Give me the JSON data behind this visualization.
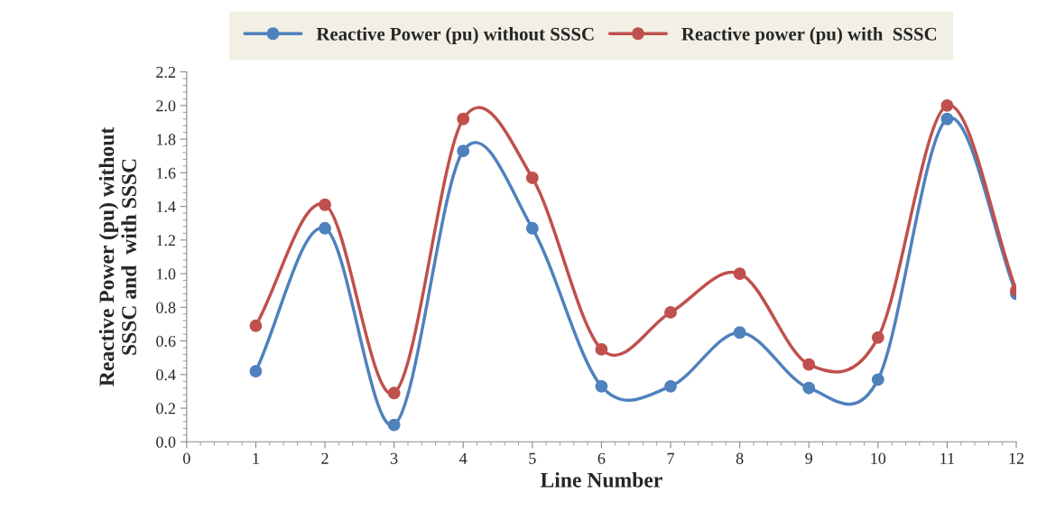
{
  "chart_data": {
    "type": "line",
    "xlabel": "Line Number",
    "ylabel": "Reactive Power (pu) without\nSSSC and  with SSSC",
    "x": [
      1,
      2,
      3,
      4,
      5,
      6,
      7,
      8,
      9,
      10,
      11,
      12
    ],
    "series": [
      {
        "name": "Reactive Power (pu) without SSSC",
        "color": "#4f81bd",
        "values": [
          0.42,
          1.27,
          0.1,
          1.73,
          1.27,
          0.33,
          0.33,
          0.65,
          0.32,
          0.37,
          1.92,
          0.88
        ]
      },
      {
        "name": "Reactive power (pu) with  SSSC",
        "color": "#c0504d",
        "values": [
          0.69,
          1.41,
          0.29,
          1.92,
          1.57,
          0.55,
          0.77,
          1.0,
          0.46,
          0.62,
          2.0,
          0.9
        ]
      }
    ],
    "xlim": [
      0,
      12
    ],
    "xticks": [
      0,
      1,
      2,
      3,
      4,
      5,
      6,
      7,
      8,
      9,
      10,
      11,
      12
    ],
    "ylim": [
      0,
      2.2
    ],
    "yticks": [
      {
        "value": 0,
        "label": "0.0"
      },
      {
        "value": 0.2,
        "label": "0.2"
      },
      {
        "value": 0.4,
        "label": "0.4"
      },
      {
        "value": 0.6,
        "label": "0.6"
      },
      {
        "value": 0.8,
        "label": "0.8"
      },
      {
        "value": 1.0,
        "label": "1.0"
      },
      {
        "value": 1.2,
        "label": "1.2"
      },
      {
        "value": 1.4,
        "label": "1.4"
      },
      {
        "value": 1.6,
        "label": "1.6"
      },
      {
        "value": 1.8,
        "label": "1.8"
      },
      {
        "value": 2.0,
        "label": "2.0"
      },
      {
        "value": 2.2,
        "label": "2.2"
      }
    ],
    "grid": false,
    "legend": "top",
    "marker": "circle",
    "line_style": "solid"
  }
}
